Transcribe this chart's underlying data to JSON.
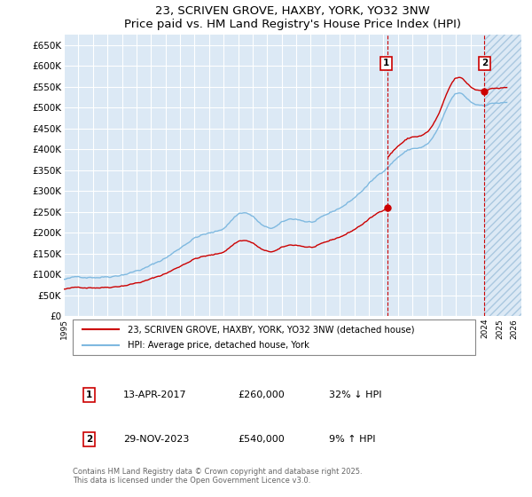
{
  "title": "23, SCRIVEN GROVE, HAXBY, YORK, YO32 3NW",
  "subtitle": "Price paid vs. HM Land Registry's House Price Index (HPI)",
  "ylim": [
    0,
    675000
  ],
  "yticks": [
    0,
    50000,
    100000,
    150000,
    200000,
    250000,
    300000,
    350000,
    400000,
    450000,
    500000,
    550000,
    600000,
    650000
  ],
  "ytick_labels": [
    "£0",
    "£50K",
    "£100K",
    "£150K",
    "£200K",
    "£250K",
    "£300K",
    "£350K",
    "£400K",
    "£450K",
    "£500K",
    "£550K",
    "£600K",
    "£650K"
  ],
  "plot_bg_color": "#dce9f5",
  "grid_color": "#ffffff",
  "hpi_color": "#7fb9e0",
  "price_color": "#cc0000",
  "sale1_x": 2017.283,
  "sale1_y": 260000,
  "sale2_x": 2023.915,
  "sale2_y": 540000,
  "legend_line1": "23, SCRIVEN GROVE, HAXBY, YORK, YO32 3NW (detached house)",
  "legend_line2": "HPI: Average price, detached house, York",
  "sale1_label": "1",
  "sale1_date": "13-APR-2017",
  "sale1_price": "£260,000",
  "sale1_hpi": "32% ↓ HPI",
  "sale2_label": "2",
  "sale2_date": "29-NOV-2023",
  "sale2_price": "£540,000",
  "sale2_hpi": "9% ↑ HPI",
  "footer": "Contains HM Land Registry data © Crown copyright and database right 2025.\nThis data is licensed under the Open Government Licence v3.0.",
  "xmin": 1995.0,
  "xmax": 2026.5,
  "xticks": [
    1995,
    1996,
    1997,
    1998,
    1999,
    2000,
    2001,
    2002,
    2003,
    2004,
    2005,
    2006,
    2007,
    2008,
    2009,
    2010,
    2011,
    2012,
    2013,
    2014,
    2015,
    2016,
    2017,
    2018,
    2019,
    2020,
    2021,
    2022,
    2023,
    2024,
    2025,
    2026
  ]
}
